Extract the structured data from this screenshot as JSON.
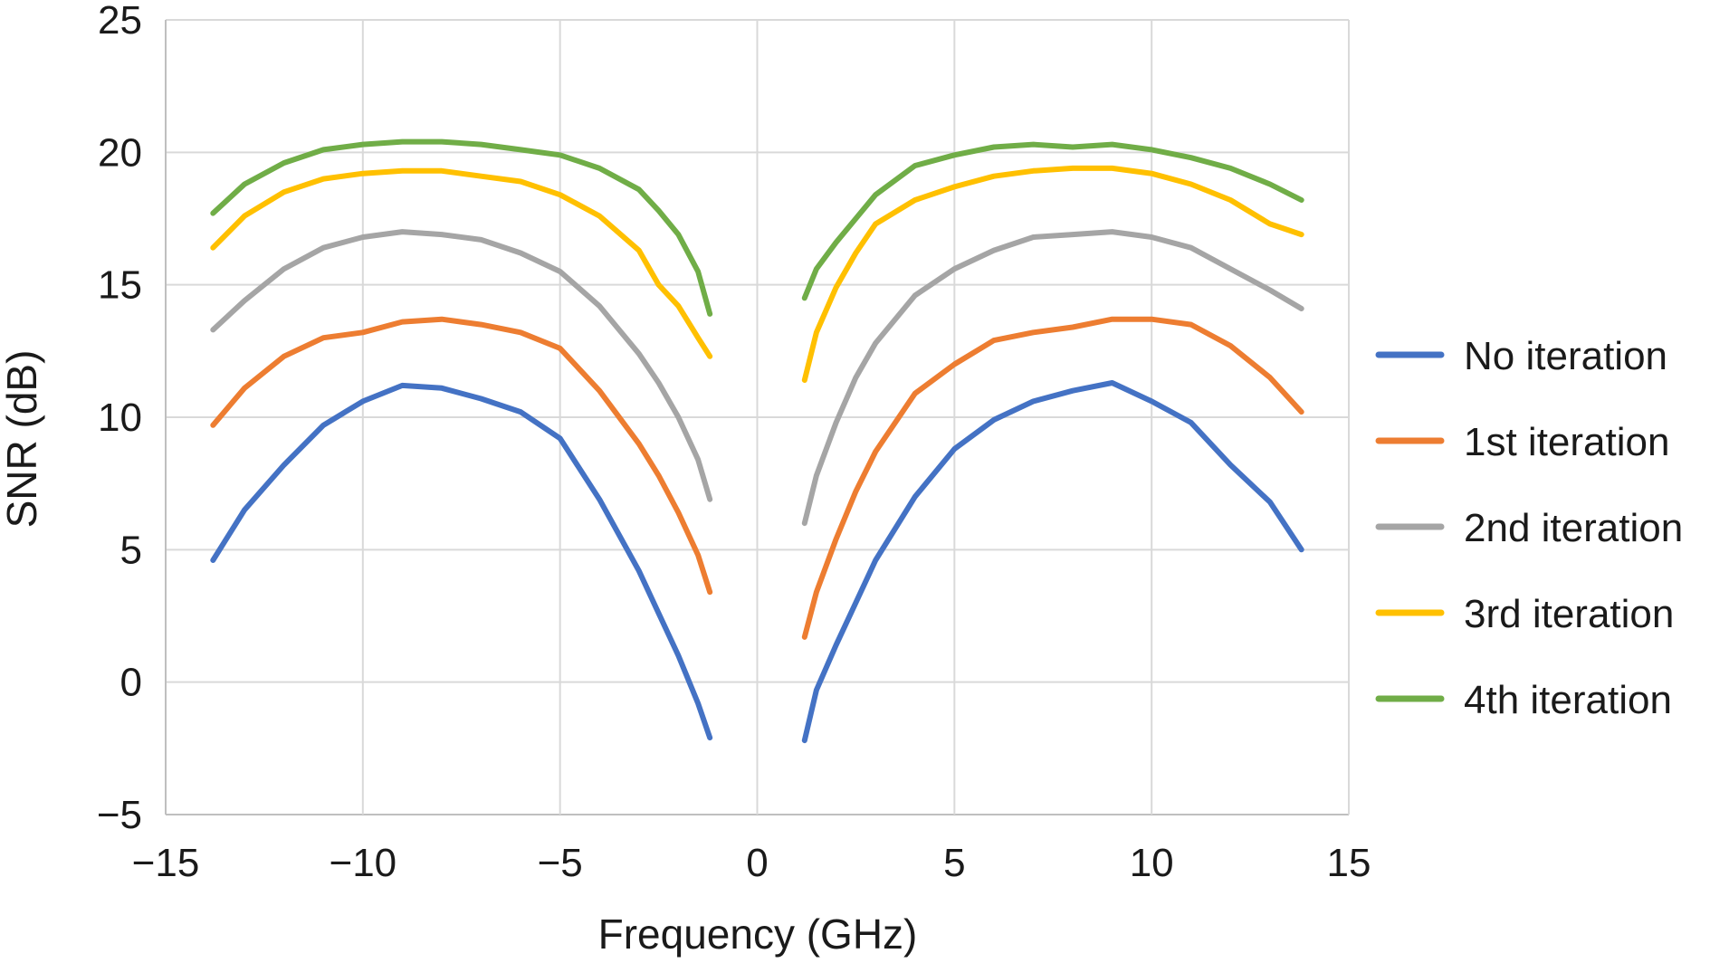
{
  "chart_data": {
    "type": "line",
    "title": "",
    "xlabel": "Frequency (GHz)",
    "ylabel": "SNR (dB)",
    "xlim": [
      -15,
      15
    ],
    "ylim": [
      -5,
      25
    ],
    "xticks": [
      -15,
      -10,
      -5,
      0,
      5,
      10,
      15
    ],
    "yticks": [
      -5,
      0,
      5,
      10,
      15,
      20,
      25
    ],
    "xtick_labels": [
      "−15",
      "−10",
      "−5",
      "0",
      "5",
      "10",
      "15"
    ],
    "ytick_labels": [
      "−5",
      "0",
      "5",
      "10",
      "15",
      "20",
      "25"
    ],
    "grid": true,
    "legend_position": "right",
    "x_left": [
      -13.8,
      -13.0,
      -12.0,
      -11.0,
      -10.0,
      -9.0,
      -8.0,
      -7.0,
      -6.0,
      -5.0,
      -4.0,
      -3.0,
      -2.5,
      -2.0,
      -1.5,
      -1.2
    ],
    "x_right": [
      1.2,
      1.5,
      2.0,
      2.5,
      3.0,
      4.0,
      5.0,
      6.0,
      7.0,
      8.0,
      9.0,
      10.0,
      11.0,
      12.0,
      13.0,
      13.8
    ],
    "series": [
      {
        "name": "No iteration",
        "color": "#4472c4",
        "left": [
          4.6,
          6.5,
          8.2,
          9.7,
          10.6,
          11.2,
          11.1,
          10.7,
          10.2,
          9.2,
          6.9,
          4.2,
          2.6,
          1.0,
          -0.8,
          -2.1
        ],
        "right": [
          -2.2,
          -0.3,
          1.4,
          3.0,
          4.6,
          7.0,
          8.8,
          9.9,
          10.6,
          11.0,
          11.3,
          10.6,
          9.8,
          8.2,
          6.8,
          5.0
        ]
      },
      {
        "name": "1st iteration",
        "color": "#ed7d31",
        "left": [
          9.7,
          11.1,
          12.3,
          13.0,
          13.2,
          13.6,
          13.7,
          13.5,
          13.2,
          12.6,
          11.0,
          9.0,
          7.8,
          6.4,
          4.8,
          3.4
        ],
        "right": [
          1.7,
          3.4,
          5.4,
          7.2,
          8.7,
          10.9,
          12.0,
          12.9,
          13.2,
          13.4,
          13.7,
          13.7,
          13.5,
          12.7,
          11.5,
          10.2
        ]
      },
      {
        "name": "2nd iteration",
        "color": "#a5a5a5",
        "left": [
          13.3,
          14.4,
          15.6,
          16.4,
          16.8,
          17.0,
          16.9,
          16.7,
          16.2,
          15.5,
          14.2,
          12.4,
          11.3,
          10.0,
          8.4,
          6.9
        ],
        "right": [
          6.0,
          7.8,
          9.8,
          11.5,
          12.8,
          14.6,
          15.6,
          16.3,
          16.8,
          16.9,
          17.0,
          16.8,
          16.4,
          15.6,
          14.8,
          14.1
        ]
      },
      {
        "name": "3rd iteration",
        "color": "#ffc000",
        "left": [
          16.4,
          17.6,
          18.5,
          19.0,
          19.2,
          19.3,
          19.3,
          19.1,
          18.9,
          18.4,
          17.6,
          16.3,
          15.0,
          14.2,
          13.0,
          12.3
        ],
        "right": [
          11.4,
          13.2,
          14.9,
          16.2,
          17.3,
          18.2,
          18.7,
          19.1,
          19.3,
          19.4,
          19.4,
          19.2,
          18.8,
          18.2,
          17.3,
          16.9
        ]
      },
      {
        "name": "4th iteration",
        "color": "#70ad47",
        "left": [
          17.7,
          18.8,
          19.6,
          20.1,
          20.3,
          20.4,
          20.4,
          20.3,
          20.1,
          19.9,
          19.4,
          18.6,
          17.8,
          16.9,
          15.5,
          13.9
        ],
        "right": [
          14.5,
          15.6,
          16.6,
          17.5,
          18.4,
          19.5,
          19.9,
          20.2,
          20.3,
          20.2,
          20.3,
          20.1,
          19.8,
          19.4,
          18.8,
          18.2
        ]
      }
    ]
  }
}
